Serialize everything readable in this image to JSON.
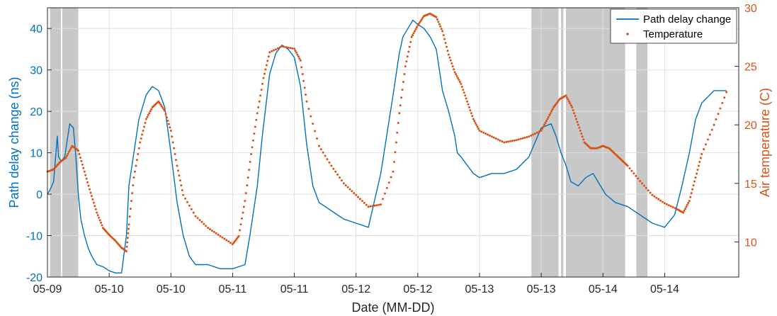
{
  "chart_data": {
    "type": "line",
    "xlabel": "Date (MM-DD)",
    "ylabel_left": "Path delay change (ns)",
    "ylabel_right": "Air temperature (C)",
    "x_range_days": [
      0,
      5.6
    ],
    "ylim_left": [
      -20,
      45
    ],
    "ylim_right": [
      7,
      30
    ],
    "left_ticks": [
      -20,
      -10,
      0,
      10,
      20,
      30,
      40
    ],
    "right_ticks": [
      10,
      15,
      20,
      25,
      30
    ],
    "x_tick_values_days": [
      0,
      0.5,
      1,
      1.5,
      2,
      2.5,
      3,
      3.5,
      4,
      4.5,
      5
    ],
    "x_tick_labels": [
      "05-09",
      "05-10",
      "05-10",
      "05-11",
      "05-11",
      "05-12",
      "05-12",
      "05-13",
      "05-13",
      "05-14",
      "05-14"
    ],
    "grid": true,
    "legend_location": "top-right",
    "colors": {
      "left": "#0072BD",
      "right": "#D95319",
      "shade": "#c8c8c8"
    },
    "shaded_intervals_days": [
      [
        0.02,
        0.11
      ],
      [
        0.12,
        0.25
      ],
      [
        3.92,
        4.14
      ],
      [
        4.16,
        4.18
      ],
      [
        4.2,
        4.68
      ],
      [
        4.77,
        4.86
      ]
    ],
    "series": [
      {
        "name": "Path delay change",
        "axis": "left",
        "style": "line",
        "x": [
          0,
          0.02,
          0.05,
          0.08,
          0.09,
          0.11,
          0.14,
          0.18,
          0.21,
          0.23,
          0.25,
          0.27,
          0.3,
          0.33,
          0.36,
          0.4,
          0.45,
          0.5,
          0.55,
          0.6,
          0.64,
          0.66,
          0.7,
          0.74,
          0.8,
          0.85,
          0.9,
          0.95,
          1.0,
          1.05,
          1.1,
          1.15,
          1.2,
          1.3,
          1.4,
          1.5,
          1.6,
          1.64,
          1.7,
          1.74,
          1.8,
          1.85,
          1.9,
          1.95,
          2.0,
          2.05,
          2.1,
          2.15,
          2.2,
          2.3,
          2.4,
          2.5,
          2.6,
          2.7,
          2.8,
          2.85,
          2.88,
          2.92,
          2.96,
          3.0,
          3.05,
          3.1,
          3.15,
          3.2,
          3.25,
          3.3,
          3.32,
          3.35,
          3.4,
          3.45,
          3.5,
          3.6,
          3.7,
          3.8,
          3.9,
          4.0,
          4.08,
          4.12,
          4.16,
          4.2,
          4.24,
          4.3,
          4.36,
          4.42,
          4.48,
          4.52,
          4.6,
          4.7,
          4.8,
          4.9,
          5.0,
          5.08,
          5.14,
          5.2,
          5.25,
          5.3,
          5.4,
          5.5
        ],
        "y": [
          0,
          1,
          3,
          14,
          9,
          8,
          9,
          17,
          16,
          9,
          0,
          -6,
          -10,
          -13,
          -15,
          -17,
          -17.5,
          -18.5,
          -19,
          -19,
          -10,
          2,
          10,
          18,
          24,
          26,
          25,
          21,
          10,
          -2,
          -10,
          -15,
          -17,
          -17,
          -18,
          -18,
          -17,
          -10,
          2,
          14,
          29,
          34,
          36,
          35,
          33,
          26,
          12,
          2,
          -2,
          -4,
          -6,
          -7,
          -8,
          5,
          24,
          34,
          38,
          40,
          42,
          41,
          40,
          38,
          35,
          25,
          20,
          14,
          10,
          9,
          7,
          5,
          4,
          5,
          5,
          6,
          9,
          16,
          17,
          14,
          10,
          7,
          3,
          2,
          4,
          5,
          2,
          0,
          -2,
          -3,
          -5,
          -7,
          -8,
          -5,
          2,
          10,
          18,
          22,
          25,
          25
        ]
      },
      {
        "name": "Temperature",
        "axis": "right",
        "style": "points",
        "x": [
          0,
          0.05,
          0.1,
          0.15,
          0.2,
          0.25,
          0.3,
          0.35,
          0.4,
          0.45,
          0.5,
          0.55,
          0.6,
          0.64,
          0.66,
          0.7,
          0.75,
          0.8,
          0.85,
          0.9,
          0.95,
          1.0,
          1.05,
          1.1,
          1.2,
          1.3,
          1.4,
          1.5,
          1.55,
          1.6,
          1.65,
          1.7,
          1.75,
          1.8,
          1.9,
          2.0,
          2.05,
          2.1,
          2.2,
          2.3,
          2.4,
          2.5,
          2.6,
          2.7,
          2.8,
          2.85,
          2.9,
          2.95,
          3.0,
          3.05,
          3.1,
          3.15,
          3.2,
          3.25,
          3.3,
          3.35,
          3.4,
          3.45,
          3.5,
          3.6,
          3.7,
          3.8,
          3.9,
          4.0,
          4.05,
          4.1,
          4.15,
          4.2,
          4.25,
          4.3,
          4.35,
          4.4,
          4.45,
          4.5,
          4.55,
          4.6,
          4.65,
          4.7,
          4.8,
          4.9,
          5.0,
          5.1,
          5.15,
          5.2,
          5.25,
          5.3,
          5.4,
          5.5
        ],
        "y": [
          16,
          16.2,
          16.8,
          17.2,
          18.2,
          17.8,
          16,
          14.2,
          12.5,
          11.2,
          10.6,
          10.1,
          9.5,
          9.2,
          11.5,
          15.5,
          18.5,
          20.5,
          21.5,
          22,
          21.2,
          19.5,
          16.5,
          14,
          12.2,
          11.2,
          10.5,
          9.8,
          10.5,
          13.5,
          17.5,
          21,
          24,
          26.2,
          26.7,
          26.5,
          25.5,
          22,
          18.2,
          16.5,
          15,
          14,
          13,
          13.2,
          16,
          21,
          25,
          27.5,
          28.5,
          29.3,
          29.5,
          29.2,
          28,
          26,
          24.5,
          23.5,
          22,
          20.5,
          19.5,
          19,
          18.5,
          18.7,
          19,
          19.5,
          20.5,
          21.5,
          22.2,
          22.5,
          21.5,
          20,
          18.5,
          18,
          18,
          18.2,
          18,
          17.5,
          17,
          16.5,
          15.2,
          14,
          13.3,
          12.8,
          12.5,
          13.5,
          15.5,
          17.5,
          20,
          22.8
        ]
      }
    ]
  }
}
